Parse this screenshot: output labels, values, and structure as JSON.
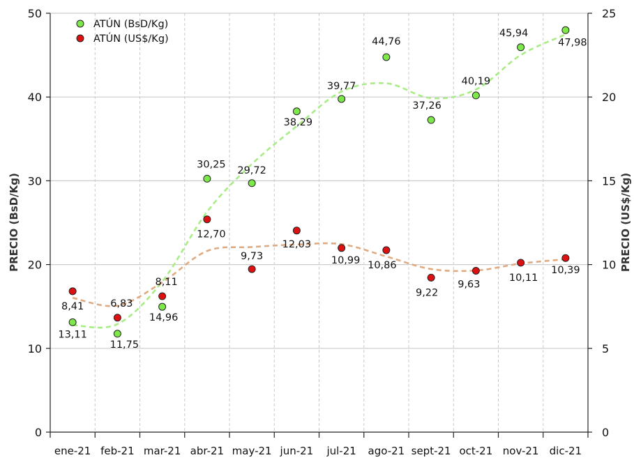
{
  "chart_data": {
    "type": "scatter",
    "categories": [
      "ene-21",
      "feb-21",
      "mar-21",
      "abr-21",
      "may-21",
      "jun-21",
      "jul-21",
      "ago-21",
      "sept-21",
      "oct-21",
      "nov-21",
      "dic-21"
    ],
    "series": [
      {
        "name": "ATÚN (BsD/Kg)",
        "axis": "left",
        "color": "#7ee84a",
        "trend_color": "#a8ec86",
        "values": [
          13.11,
          11.75,
          14.96,
          30.25,
          29.72,
          38.29,
          39.77,
          44.76,
          37.26,
          40.19,
          45.94,
          47.98
        ],
        "labels": [
          "13,11",
          "11,75",
          "14,96",
          "30,25",
          "29,72",
          "38,29",
          "39,77",
          "44,76",
          "37,26",
          "40,19",
          "45,94",
          "47,98"
        ]
      },
      {
        "name": "ATÚN (US$/Kg)",
        "axis": "right",
        "color": "#dd1111",
        "trend_color": "#e0aa80",
        "values": [
          8.41,
          6.83,
          8.11,
          12.7,
          9.73,
          12.03,
          10.99,
          10.86,
          9.22,
          9.63,
          10.11,
          10.39
        ],
        "labels": [
          "8,41",
          "6,83",
          "8,11",
          "12,70",
          "9,73",
          "12,03",
          "10,99",
          "10,86",
          "9,22",
          "9,63",
          "10,11",
          "10,39"
        ]
      }
    ],
    "y_left": {
      "label": "PRECIO (BsD/Kg)",
      "min": 0,
      "max": 50,
      "ticks": [
        "0",
        "10",
        "20",
        "30",
        "40",
        "50"
      ]
    },
    "y_right": {
      "label": "PRECIO (US$/Kg)",
      "min": 0,
      "max": 25,
      "ticks": [
        "0",
        "5",
        "10",
        "15",
        "20",
        "25"
      ]
    },
    "grid": "horizontal solid, vertical dashed",
    "legend_position": "top-left",
    "trendline": "smoothed dashed"
  }
}
